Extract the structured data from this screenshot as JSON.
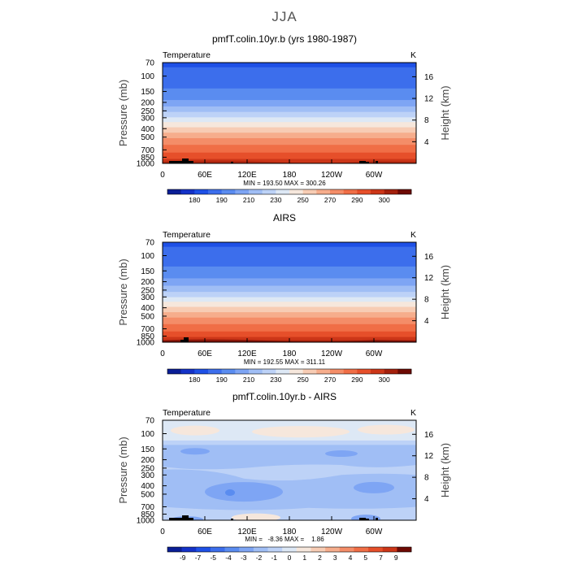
{
  "figure": {
    "title": "JJA"
  },
  "chart_data": [
    {
      "type": "heatmap",
      "title": "pmfT.colin.10yr.b (yrs 1980-1987)",
      "left_label": "Temperature",
      "units": "K",
      "ylabel": "Pressure (mb)",
      "ylabel_right": "Height (km)",
      "x_ticks": [
        "0",
        "60E",
        "120E",
        "180",
        "120W",
        "60W"
      ],
      "y_ticks": [
        "70",
        "100",
        "150",
        "200",
        "250",
        "300",
        "400",
        "500",
        "700",
        "850",
        "1000"
      ],
      "height_ticks": [
        "16",
        "12",
        "8",
        "4"
      ],
      "min_max_text": "MIN = 193.50   MAX = 300.26",
      "min": 193.5,
      "max": 300.26,
      "colorbar_labels": [
        "180",
        "190",
        "210",
        "230",
        "250",
        "270",
        "290",
        "300"
      ],
      "colors": [
        "#0a1e96",
        "#1432c8",
        "#1e50e6",
        "#3c6eec",
        "#5a8cf0",
        "#7ea5f4",
        "#a0bef5",
        "#bdd2f7",
        "#dde8f5",
        "#f6e7dc",
        "#f7ccb4",
        "#f6ad8c",
        "#f48d68",
        "#f06e46",
        "#e64f2a",
        "#cc3618",
        "#a4200c",
        "#6e0a04"
      ]
    },
    {
      "type": "heatmap",
      "title": "AIRS",
      "left_label": "Temperature",
      "units": "K",
      "ylabel": "Pressure (mb)",
      "ylabel_right": "Height (km)",
      "x_ticks": [
        "0",
        "60E",
        "120E",
        "180",
        "120W",
        "60W"
      ],
      "y_ticks": [
        "70",
        "100",
        "150",
        "200",
        "250",
        "300",
        "400",
        "500",
        "700",
        "850",
        "1000"
      ],
      "height_ticks": [
        "16",
        "12",
        "8",
        "4"
      ],
      "min_max_text": "MIN = 192.55   MAX = 311.11",
      "min": 192.55,
      "max": 311.11,
      "colorbar_labels": [
        "180",
        "190",
        "210",
        "230",
        "250",
        "270",
        "290",
        "300"
      ],
      "colors": [
        "#0a1e96",
        "#1432c8",
        "#1e50e6",
        "#3c6eec",
        "#5a8cf0",
        "#7ea5f4",
        "#a0bef5",
        "#bdd2f7",
        "#dde8f5",
        "#f6e7dc",
        "#f7ccb4",
        "#f6ad8c",
        "#f48d68",
        "#f06e46",
        "#e64f2a",
        "#cc3618",
        "#a4200c",
        "#6e0a04"
      ]
    },
    {
      "type": "heatmap",
      "title": "pmfT.colin.10yr.b - AIRS",
      "left_label": "Temperature",
      "units": "K",
      "ylabel": "Pressure (mb)",
      "ylabel_right": "Height (km)",
      "x_ticks": [
        "0",
        "60E",
        "120E",
        "180",
        "120W",
        "60W"
      ],
      "y_ticks": [
        "70",
        "100",
        "150",
        "200",
        "250",
        "300",
        "400",
        "500",
        "700",
        "850",
        "1000"
      ],
      "height_ticks": [
        "16",
        "12",
        "8",
        "4"
      ],
      "min_max_text": "MIN =   -8.36   MAX =    1.86",
      "min": -8.36,
      "max": 1.86,
      "colorbar_labels": [
        "-9",
        "-7",
        "-5",
        "-4",
        "-3",
        "-2",
        "-1",
        "0",
        "1",
        "2",
        "3",
        "4",
        "5",
        "7",
        "9"
      ],
      "colors": [
        "#0a1e96",
        "#1432c8",
        "#1e50e6",
        "#3c6eec",
        "#5a8cf0",
        "#7ea5f4",
        "#a0bef5",
        "#bdd2f7",
        "#dde8f5",
        "#f6e7dc",
        "#f7ccb4",
        "#f6ad8c",
        "#f48d68",
        "#f06e46",
        "#e64f2a",
        "#cc3618",
        "#6e0a04"
      ]
    }
  ]
}
